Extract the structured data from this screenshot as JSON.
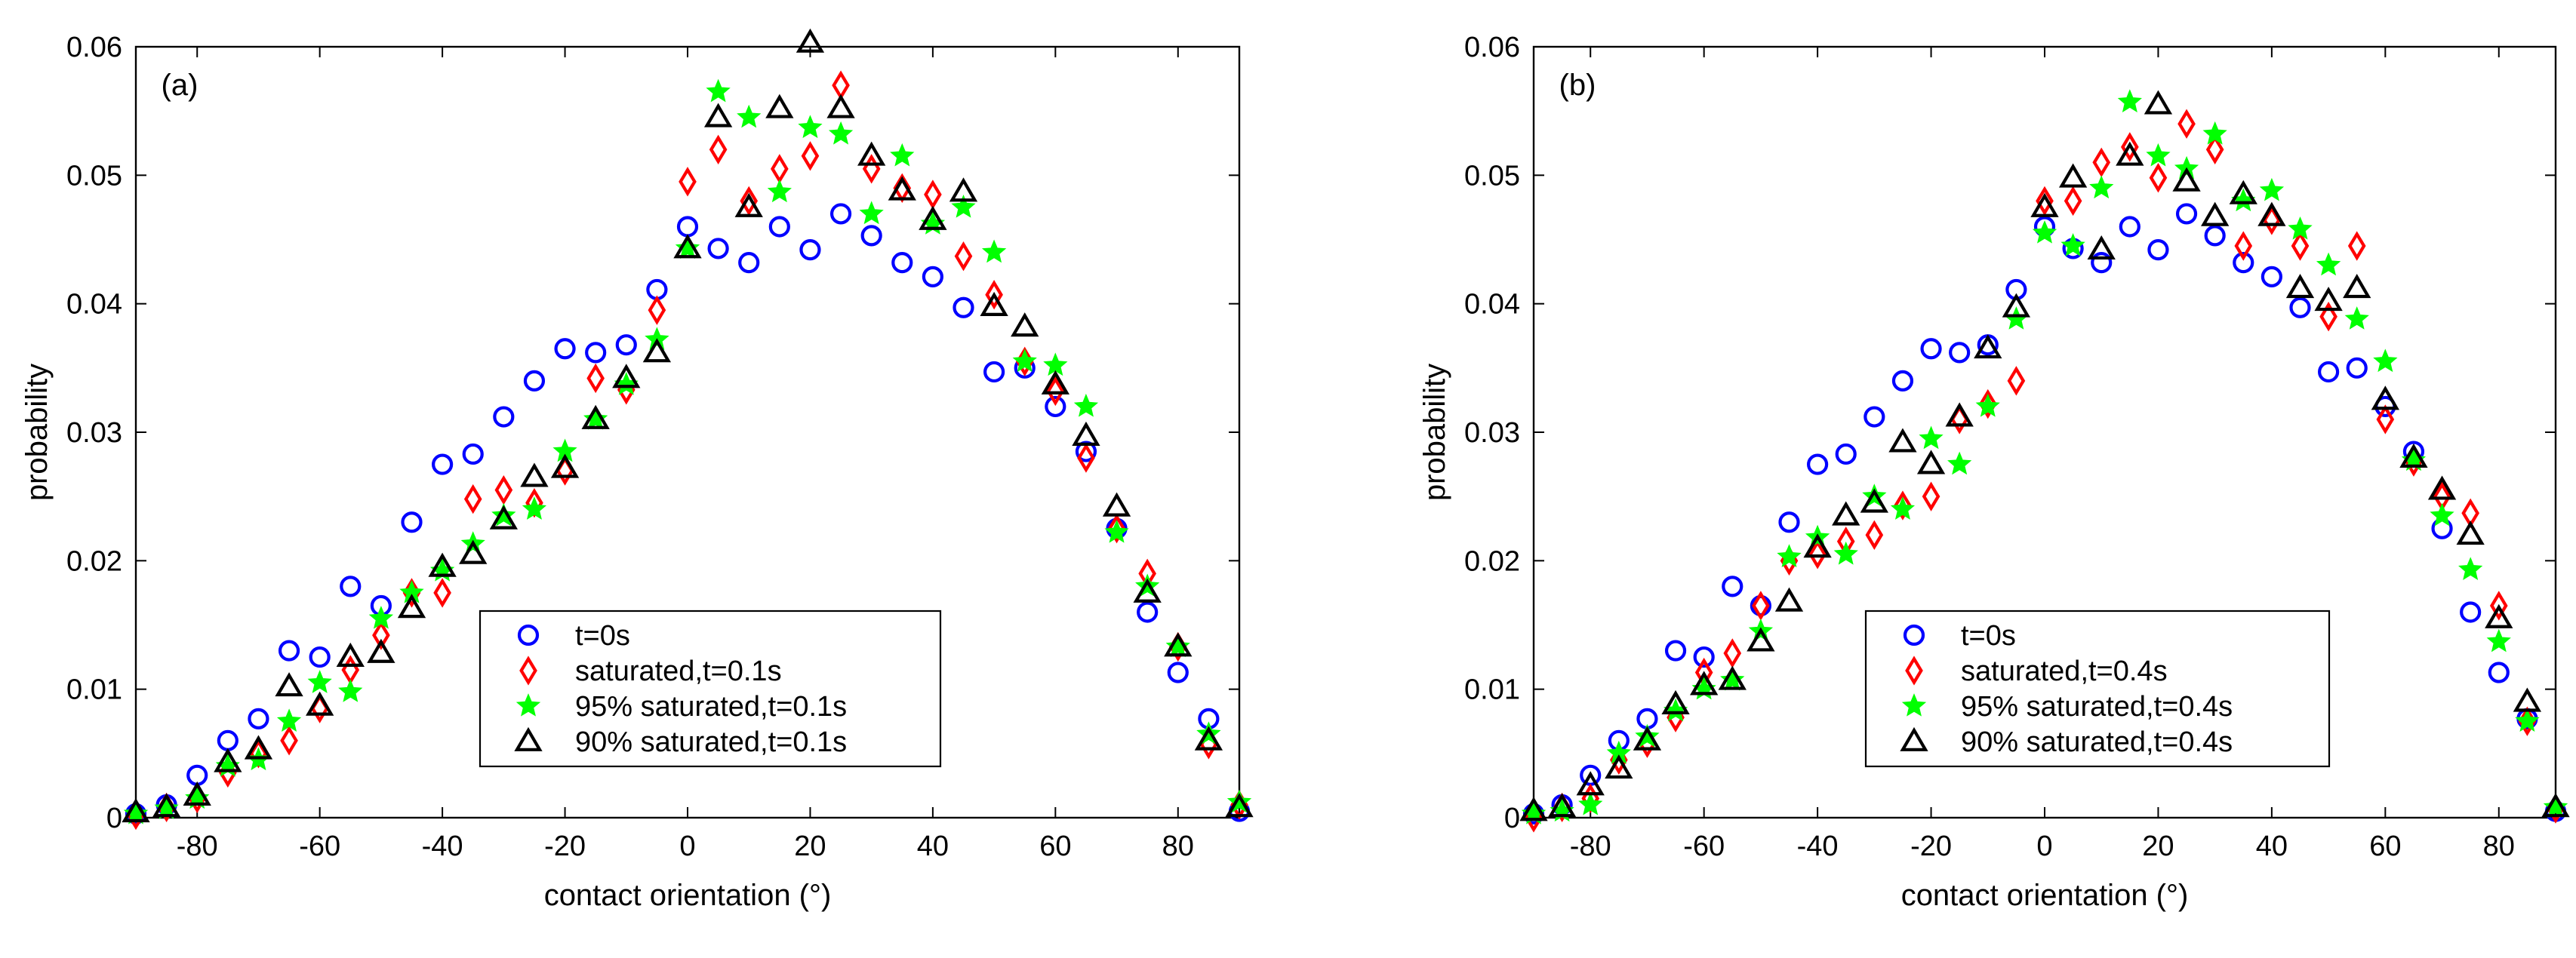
{
  "chart_data": [
    {
      "type": "scatter",
      "panel_label": "(a)",
      "xlabel": "contact orientation (°)",
      "ylabel": "probability",
      "xlim": [
        -90,
        90
      ],
      "ylim": [
        0,
        0.06
      ],
      "xticks": [
        -80,
        -60,
        -40,
        -20,
        0,
        20,
        40,
        60,
        80
      ],
      "xtick_labels": [
        "-80",
        "-60",
        "-40",
        "-20",
        "0",
        "20",
        "40",
        "60",
        "80"
      ],
      "yticks": [
        0,
        0.01,
        0.02,
        0.03,
        0.04,
        0.05,
        0.06
      ],
      "ytick_labels": [
        "0",
        "0.01",
        "0.02",
        "0.03",
        "0.04",
        "0.05",
        "0.06"
      ],
      "grid": false,
      "legend_position": "bottom-right",
      "x": [
        -90,
        -85,
        -80,
        -75,
        -70,
        -65,
        -60,
        -55,
        -50,
        -45,
        -40,
        -35,
        -30,
        -25,
        -20,
        -15,
        -10,
        -5,
        0,
        5,
        10,
        15,
        20,
        25,
        30,
        35,
        40,
        45,
        50,
        55,
        60,
        65,
        70,
        75,
        80,
        85,
        90
      ],
      "series": [
        {
          "name": "t=0s",
          "marker": "circle",
          "color": "#0000ff",
          "values": [
            0.0003,
            0.001,
            0.0033,
            0.006,
            0.0077,
            0.013,
            0.0125,
            0.018,
            0.0165,
            0.023,
            0.0275,
            0.0283,
            0.0312,
            0.034,
            0.0365,
            0.0362,
            0.0368,
            0.0411,
            0.046,
            0.0443,
            0.0432,
            0.046,
            0.0442,
            0.047,
            0.0453,
            0.0432,
            0.0421,
            0.0397,
            0.0347,
            0.035,
            0.032,
            0.0285,
            0.0225,
            0.016,
            0.0113,
            0.0077,
            0.0005
          ]
        },
        {
          "name": "saturated,t=0.1s",
          "marker": "diamond",
          "color": "#ff0000",
          "values": [
            0.0002,
            0.0008,
            0.0015,
            0.0035,
            0.005,
            0.006,
            0.0085,
            0.0115,
            0.0142,
            0.0175,
            0.0175,
            0.0248,
            0.0255,
            0.0245,
            0.027,
            0.0342,
            0.0333,
            0.0395,
            0.0495,
            0.052,
            0.048,
            0.0505,
            0.0515,
            0.057,
            0.0505,
            0.049,
            0.0485,
            0.0437,
            0.0407,
            0.0355,
            0.0332,
            0.028,
            0.0225,
            0.019,
            0.0133,
            0.0057,
            0.001
          ]
        },
        {
          "name": "95% saturated,t=0.1s",
          "marker": "star",
          "color": "#00ff00",
          "values": [
            0.0003,
            0.0007,
            0.0015,
            0.004,
            0.0045,
            0.0075,
            0.0105,
            0.0098,
            0.0155,
            0.0175,
            0.0192,
            0.0213,
            0.0235,
            0.024,
            0.0285,
            0.031,
            0.0337,
            0.0372,
            0.0443,
            0.0565,
            0.0545,
            0.0487,
            0.0537,
            0.0532,
            0.047,
            0.0515,
            0.0462,
            0.0475,
            0.044,
            0.0355,
            0.0352,
            0.032,
            0.0222,
            0.018,
            0.0133,
            0.0065,
            0.0012
          ]
        },
        {
          "name": "90% saturated,t=0.1s",
          "marker": "triangle",
          "color": "#000000",
          "values": [
            0.0004,
            0.0008,
            0.0017,
            0.0043,
            0.0053,
            0.0102,
            0.0087,
            0.0125,
            0.0128,
            0.0163,
            0.0195,
            0.0205,
            0.0232,
            0.0265,
            0.0272,
            0.031,
            0.0342,
            0.0362,
            0.0443,
            0.0545,
            0.0475,
            0.0552,
            0.0603,
            0.0552,
            0.0515,
            0.0488,
            0.0465,
            0.0487,
            0.0398,
            0.0382,
            0.0337,
            0.0297,
            0.0242,
            0.0175,
            0.0133,
            0.006,
            0.0008
          ]
        }
      ]
    },
    {
      "type": "scatter",
      "panel_label": "(b)",
      "xlabel": "contact orientation (°)",
      "ylabel": "probability",
      "xlim": [
        -90,
        90
      ],
      "ylim": [
        0,
        0.06
      ],
      "xticks": [
        -80,
        -60,
        -40,
        -20,
        0,
        20,
        40,
        60,
        80
      ],
      "xtick_labels": [
        "-80",
        "-60",
        "-40",
        "-20",
        "0",
        "20",
        "40",
        "60",
        "80"
      ],
      "yticks": [
        0,
        0.01,
        0.02,
        0.03,
        0.04,
        0.05,
        0.06
      ],
      "ytick_labels": [
        "0",
        "0.01",
        "0.02",
        "0.03",
        "0.04",
        "0.05",
        "0.06"
      ],
      "grid": false,
      "legend_position": "bottom-right",
      "x": [
        -90,
        -85,
        -80,
        -75,
        -70,
        -65,
        -60,
        -55,
        -50,
        -45,
        -40,
        -35,
        -30,
        -25,
        -20,
        -15,
        -10,
        -5,
        0,
        5,
        10,
        15,
        20,
        25,
        30,
        35,
        40,
        45,
        50,
        55,
        60,
        65,
        70,
        75,
        80,
        85,
        90
      ],
      "series": [
        {
          "name": "t=0s",
          "marker": "circle",
          "color": "#0000ff",
          "values": [
            0.0003,
            0.001,
            0.0033,
            0.006,
            0.0077,
            0.013,
            0.0125,
            0.018,
            0.0165,
            0.023,
            0.0275,
            0.0283,
            0.0312,
            0.034,
            0.0365,
            0.0362,
            0.0368,
            0.0411,
            0.046,
            0.0443,
            0.0432,
            0.046,
            0.0442,
            0.047,
            0.0453,
            0.0432,
            0.0421,
            0.0397,
            0.0347,
            0.035,
            0.032,
            0.0285,
            0.0225,
            0.016,
            0.0113,
            0.0077,
            0.0005
          ]
        },
        {
          "name": "saturated,t=0.4s",
          "marker": "diamond",
          "color": "#ff0000",
          "values": [
            0.0,
            0.0008,
            0.0015,
            0.0045,
            0.0058,
            0.0078,
            0.0113,
            0.0128,
            0.0165,
            0.02,
            0.0205,
            0.0215,
            0.022,
            0.0243,
            0.025,
            0.031,
            0.0322,
            0.034,
            0.048,
            0.048,
            0.051,
            0.0522,
            0.0498,
            0.054,
            0.052,
            0.0445,
            0.0465,
            0.0445,
            0.039,
            0.0445,
            0.031,
            0.0277,
            0.025,
            0.0237,
            0.0165,
            0.0075,
            0.0007
          ]
        },
        {
          "name": "95% saturated,t=0.4s",
          "marker": "star",
          "color": "#00ff00",
          "values": [
            0.0003,
            0.0005,
            0.001,
            0.005,
            0.0063,
            0.0083,
            0.01,
            0.0107,
            0.0145,
            0.0203,
            0.0218,
            0.0205,
            0.025,
            0.024,
            0.0295,
            0.0275,
            0.032,
            0.0388,
            0.0455,
            0.0445,
            0.049,
            0.0557,
            0.0515,
            0.0505,
            0.0532,
            0.048,
            0.0488,
            0.0458,
            0.043,
            0.0388,
            0.0355,
            0.0278,
            0.0235,
            0.0193,
            0.0137,
            0.0075,
            0.0008
          ]
        },
        {
          "name": "90% saturated,t=0.4s",
          "marker": "triangle",
          "color": "#000000",
          "values": [
            0.0005,
            0.0008,
            0.0025,
            0.0038,
            0.006,
            0.0088,
            0.0103,
            0.0107,
            0.0137,
            0.0168,
            0.021,
            0.0235,
            0.0245,
            0.0292,
            0.0275,
            0.0312,
            0.0365,
            0.0397,
            0.0475,
            0.0498,
            0.0442,
            0.0515,
            0.0555,
            0.0495,
            0.0468,
            0.0485,
            0.0468,
            0.0412,
            0.0402,
            0.0412,
            0.0325,
            0.028,
            0.0255,
            0.022,
            0.0155,
            0.009,
            0.0008
          ]
        }
      ]
    }
  ]
}
